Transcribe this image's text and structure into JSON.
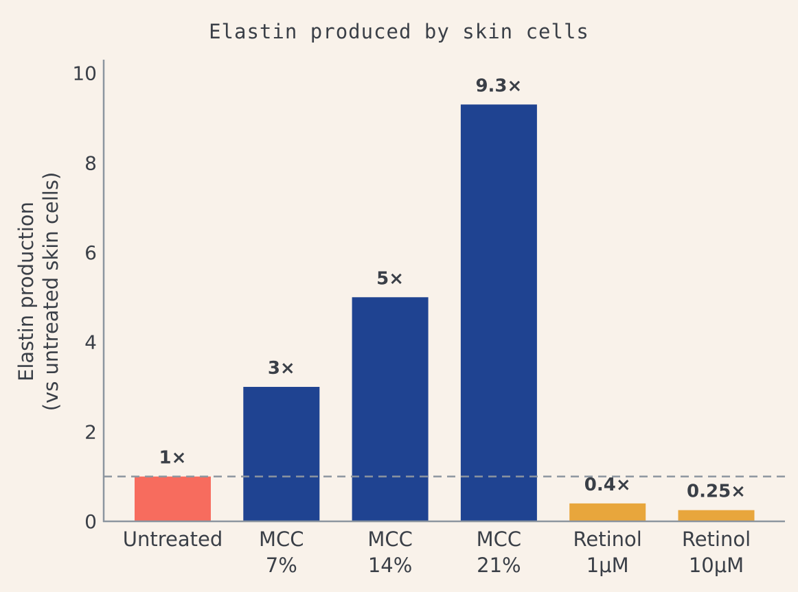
{
  "chart_data": {
    "type": "bar",
    "title": "Elastin produced by skin cells",
    "ylabel_lines": [
      "Elastin production",
      "(vs untreated skin cells)"
    ],
    "xlabel": "",
    "categories": [
      [
        "Untreated"
      ],
      [
        "MCC",
        "7%"
      ],
      [
        "MCC",
        "14%"
      ],
      [
        "MCC",
        "21%"
      ],
      [
        "Retinol",
        "1μM"
      ],
      [
        "Retinol",
        "10μM"
      ]
    ],
    "values": [
      1,
      3,
      5,
      9.3,
      0.4,
      0.25
    ],
    "data_labels": [
      "1×",
      "3×",
      "5×",
      "9.3×",
      "0.4×",
      "0.25×"
    ],
    "bar_colors": [
      "#f76c5e",
      "#1f4391",
      "#1f4391",
      "#1f4391",
      "#e8a63c",
      "#e8a63c"
    ],
    "ylim": [
      0,
      10.3
    ],
    "yticks": [
      0,
      2,
      4,
      6,
      8,
      10
    ],
    "reference_line": 1,
    "reference_line_style": "dashed",
    "grid": false,
    "legend": "none",
    "colors": {
      "background": "#f9f2ea",
      "axis": "#8c959f",
      "text": "#3a3f47"
    }
  }
}
